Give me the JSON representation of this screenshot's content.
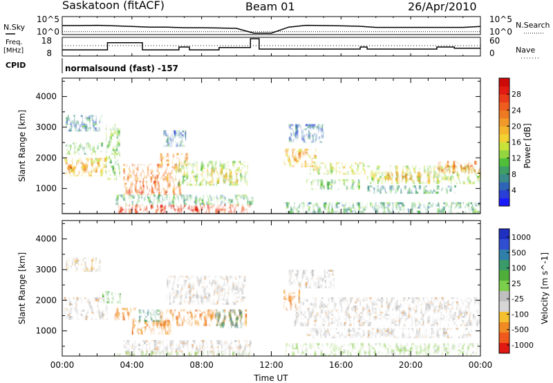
{
  "header": {
    "station": "Saskatoon (fitACF)",
    "beam": "Beam 01",
    "date": "26/Apr/2010"
  },
  "left_labels": {
    "nsky": "N.Sky",
    "freq_line1": "Freq.",
    "freq_line2": "[MHz]",
    "cpid": "CPID"
  },
  "right_labels": {
    "nsearch": "N.Search",
    "nave": "Nave"
  },
  "cpid_text": "normalsound (fast) -157",
  "chart_data": [
    {
      "type": "line",
      "panel": "noise",
      "ytick_labels": [
        "10^5",
        "10^0"
      ],
      "right_ytick_labels": [
        "10^5",
        "10^0"
      ],
      "series": [
        {
          "name": "N.Sky",
          "x": [
            0,
            1,
            2,
            3,
            4,
            5,
            6,
            7,
            8,
            9,
            10,
            11,
            12,
            13,
            14,
            15,
            16,
            17,
            18,
            19,
            20,
            21,
            22,
            23,
            24
          ],
          "values": [
            2.5,
            2.5,
            2.6,
            2.4,
            2.2,
            2.0,
            2.0,
            1.8,
            1.8,
            1.7,
            1.6,
            0.0,
            0.0,
            2.0,
            2.6,
            2.5,
            2.4,
            2.3,
            1.9,
            1.9,
            1.9,
            1.9,
            1.9,
            1.9,
            2.2
          ]
        },
        {
          "name": "N.Search",
          "x": [
            0,
            24
          ],
          "values": [
            0.5,
            0.5
          ]
        }
      ]
    },
    {
      "type": "line",
      "panel": "frequency",
      "ytick_labels": [
        "18",
        "8"
      ],
      "right_ytick_labels": [
        "60",
        "0"
      ],
      "series": [
        {
          "name": "Freq.",
          "x": [
            0,
            2.6,
            2.6,
            4.6,
            4.6,
            6.7,
            6.7,
            7.3,
            7.3,
            9.0,
            9.0,
            10.8,
            10.8,
            11.3,
            11.3,
            17.1,
            17.1,
            17.5,
            17.5,
            21.5,
            21.5,
            22.5,
            22.5,
            24
          ],
          "values": [
            11,
            11,
            15.5,
            15.5,
            11,
            11,
            12.8,
            12.8,
            11,
            11,
            12.5,
            12.5,
            18,
            18,
            11.5,
            11.5,
            12.8,
            12.8,
            11.5,
            11.5,
            12.8,
            12.8,
            12,
            12
          ]
        },
        {
          "name": "Nave",
          "x": [
            0,
            24
          ],
          "values": [
            34,
            34
          ]
        }
      ]
    },
    {
      "type": "heatmap",
      "panel": "power",
      "ylabel": "Slant Range [km]",
      "yticks": [
        1000,
        2000,
        3000,
        4000
      ],
      "ylim": [
        180,
        4600
      ],
      "xlim": [
        0,
        24
      ],
      "colorbar": {
        "label": "Power [dB]",
        "ticks": [
          4,
          8,
          12,
          16,
          20,
          24,
          28
        ],
        "range": [
          0,
          32
        ]
      },
      "regions": [
        {
          "t0": 0.2,
          "t1": 2.3,
          "r0": 2900,
          "r1": 3400,
          "level": 6
        },
        {
          "t0": 0.1,
          "t1": 2.5,
          "r0": 1450,
          "r1": 2000,
          "level": 17
        },
        {
          "t0": 0.2,
          "t1": 2.2,
          "r0": 1550,
          "r1": 1850,
          "level": 21
        },
        {
          "t0": 0.2,
          "t1": 2.3,
          "r0": 2150,
          "r1": 2500,
          "level": 11
        },
        {
          "t0": 2.5,
          "t1": 3.3,
          "r0": 1300,
          "r1": 3100,
          "level": 12
        },
        {
          "t0": 3.5,
          "t1": 6.8,
          "r0": 850,
          "r1": 1800,
          "level": 23
        },
        {
          "t0": 3.8,
          "t1": 5.5,
          "r0": 850,
          "r1": 1250,
          "level": 27
        },
        {
          "t0": 5.5,
          "t1": 7.2,
          "r0": 1750,
          "r1": 2150,
          "level": 21
        },
        {
          "t0": 3.2,
          "t1": 10.8,
          "r0": 200,
          "r1": 480,
          "level": 27
        },
        {
          "t0": 4.8,
          "t1": 7.8,
          "r0": 250,
          "r1": 450,
          "level": 29
        },
        {
          "t0": 6.5,
          "t1": 10.6,
          "r0": 1100,
          "r1": 1900,
          "level": 13
        },
        {
          "t0": 8.3,
          "t1": 10.0,
          "r0": 1200,
          "r1": 1650,
          "level": 19
        },
        {
          "t0": 3.0,
          "t1": 10.9,
          "r0": 500,
          "r1": 800,
          "level": 9
        },
        {
          "t0": 5.8,
          "t1": 7.0,
          "r0": 2400,
          "r1": 2900,
          "level": 6
        },
        {
          "t0": 12.7,
          "t1": 14.6,
          "r0": 1700,
          "r1": 2300,
          "level": 18
        },
        {
          "t0": 13.0,
          "t1": 14.0,
          "r0": 1900,
          "r1": 2200,
          "level": 22
        },
        {
          "t0": 14.2,
          "t1": 17.4,
          "r0": 1500,
          "r1": 1850,
          "level": 15
        },
        {
          "t0": 14.0,
          "t1": 17.0,
          "r0": 1000,
          "r1": 1300,
          "level": 11
        },
        {
          "t0": 12.7,
          "t1": 24.0,
          "r0": 200,
          "r1": 550,
          "level": 9
        },
        {
          "t0": 17.5,
          "t1": 24.0,
          "r0": 1200,
          "r1": 1750,
          "level": 14
        },
        {
          "t0": 18.5,
          "t1": 21.5,
          "r0": 1250,
          "r1": 1550,
          "level": 20
        },
        {
          "t0": 21.5,
          "t1": 24.0,
          "r0": 1500,
          "r1": 1900,
          "level": 22
        },
        {
          "t0": 17.5,
          "t1": 22.5,
          "r0": 850,
          "r1": 1100,
          "level": 8
        },
        {
          "t0": 13.0,
          "t1": 15.0,
          "r0": 2500,
          "r1": 3100,
          "level": 5
        }
      ]
    },
    {
      "type": "heatmap",
      "panel": "velocity",
      "ylabel": "Slant Range [km]",
      "yticks": [
        1000,
        2000,
        3000,
        4000
      ],
      "ylim": [
        180,
        4600
      ],
      "xlim": [
        0,
        24
      ],
      "xticks": [
        "00:00",
        "04:00",
        "08:00",
        "12:00",
        "16:00",
        "20:00",
        "00:00"
      ],
      "xlabel": "Time UT",
      "colorbar": {
        "label": "Velocity [m s^-1]",
        "ticks": [
          "1000",
          "500",
          "100",
          "25",
          "-25",
          "-100",
          "-500",
          "-1000"
        ]
      },
      "regions": [
        {
          "t0": 0.2,
          "t1": 2.2,
          "r0": 2950,
          "r1": 3400,
          "vclass": "slow-neg"
        },
        {
          "t0": 0.1,
          "t1": 2.5,
          "r0": 1400,
          "r1": 2100,
          "vclass": "gray"
        },
        {
          "t0": 2.3,
          "t1": 3.3,
          "r0": 1900,
          "r1": 2300,
          "vclass": "green"
        },
        {
          "t0": 3.0,
          "t1": 4.2,
          "r0": 1350,
          "r1": 1750,
          "vclass": "orange"
        },
        {
          "t0": 4.0,
          "t1": 6.2,
          "r0": 900,
          "r1": 1350,
          "vclass": "orange"
        },
        {
          "t0": 4.4,
          "t1": 5.6,
          "r0": 1350,
          "r1": 1700,
          "vclass": "teal"
        },
        {
          "t0": 5.6,
          "t1": 10.5,
          "r0": 1200,
          "r1": 1700,
          "vclass": "orange"
        },
        {
          "t0": 8.8,
          "t1": 10.3,
          "r0": 1150,
          "r1": 1700,
          "vclass": "teal"
        },
        {
          "t0": 3.5,
          "t1": 10.9,
          "r0": 200,
          "r1": 700,
          "vclass": "gray"
        },
        {
          "t0": 3.0,
          "t1": 10.9,
          "r0": 200,
          "r1": 330,
          "vclass": "light-green"
        },
        {
          "t0": 6.0,
          "t1": 10.5,
          "r0": 1900,
          "r1": 2800,
          "vclass": "gray"
        },
        {
          "t0": 12.7,
          "t1": 13.6,
          "r0": 1700,
          "r1": 2350,
          "vclass": "orange"
        },
        {
          "t0": 13.3,
          "t1": 24.0,
          "r0": 1200,
          "r1": 2100,
          "vclass": "gray"
        },
        {
          "t0": 12.8,
          "t1": 24.0,
          "r0": 180,
          "r1": 600,
          "vclass": "light-green"
        },
        {
          "t0": 14.0,
          "t1": 23.5,
          "r0": 800,
          "r1": 1100,
          "vclass": "gray"
        },
        {
          "t0": 13.0,
          "t1": 15.5,
          "r0": 2400,
          "r1": 3000,
          "vclass": "gray"
        }
      ]
    }
  ]
}
